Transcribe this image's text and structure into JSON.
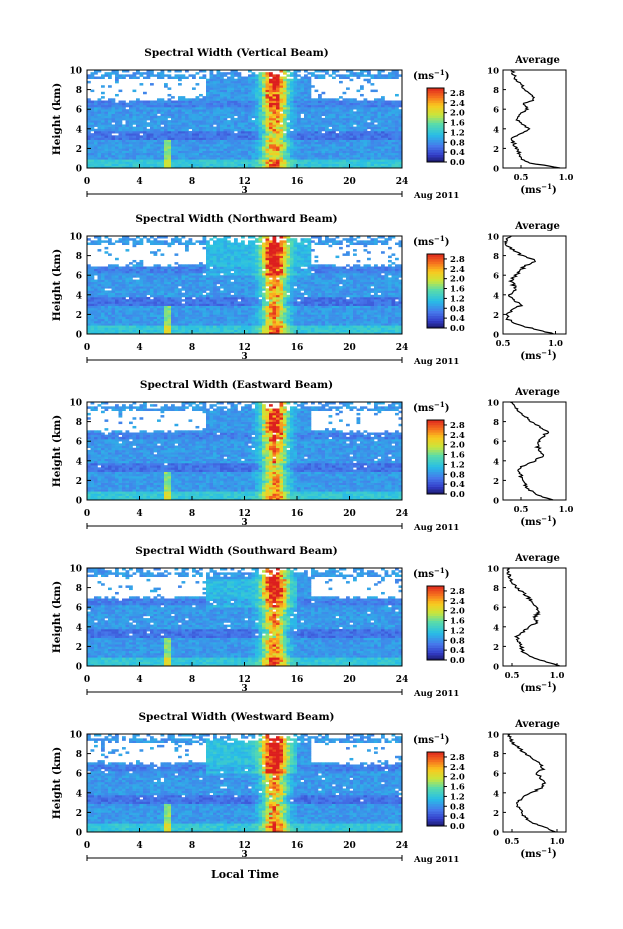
{
  "figure": {
    "xlabel": "Local Time",
    "date_label": "Aug 2011",
    "day_label": "3",
    "colorbar_unit": "(ms",
    "colorbar_unit_exp": "−1",
    "colorbar_unit_close": ")",
    "avg_unit": "(ms",
    "avg_unit_exp": "−1",
    "avg_unit_close": ")",
    "avg_title": "Average"
  },
  "chart_data": [
    {
      "type": "heatmap",
      "title": "Spectral Width (Vertical Beam)",
      "ylabel": "Height (km)",
      "xlim": [
        0,
        24
      ],
      "ylim": [
        0,
        10
      ],
      "xticks": [
        0,
        4,
        8,
        12,
        16,
        20,
        24
      ],
      "yticks": [
        0,
        2,
        4,
        6,
        8,
        10
      ],
      "colorbar": {
        "min": 0.0,
        "max": 3.0,
        "ticks": [
          "0.0",
          "0.4",
          "0.8",
          "1.2",
          "1.6",
          "2.0",
          "2.4",
          "2.8"
        ]
      },
      "average_profile": {
        "xlim": [
          0.3,
          1.0
        ],
        "xticks": [
          "0.5",
          "1.0"
        ],
        "height": [
          0,
          0.5,
          1,
          1.5,
          2,
          2.5,
          3,
          3.5,
          4,
          4.5,
          5,
          5.5,
          6,
          6.5,
          7,
          7.5,
          8,
          8.5,
          9,
          9.5,
          10
        ],
        "value": [
          0.95,
          0.6,
          0.5,
          0.48,
          0.45,
          0.42,
          0.4,
          0.5,
          0.58,
          0.52,
          0.45,
          0.5,
          0.58,
          0.52,
          0.65,
          0.6,
          0.55,
          0.5,
          0.45,
          0.42,
          0.4
        ]
      }
    },
    {
      "type": "heatmap",
      "title": "Spectral Width (Northward Beam)",
      "ylabel": "Height (km)",
      "xlim": [
        0,
        24
      ],
      "ylim": [
        0,
        10
      ],
      "xticks": [
        0,
        4,
        8,
        12,
        16,
        20,
        24
      ],
      "yticks": [
        0,
        2,
        4,
        6,
        8,
        10
      ],
      "colorbar": {
        "min": 0.0,
        "max": 3.0,
        "ticks": [
          "0.0",
          "0.4",
          "0.8",
          "1.2",
          "1.6",
          "2.0",
          "2.4",
          "2.8"
        ]
      },
      "average_profile": {
        "xlim": [
          0.5,
          1.1
        ],
        "xticks": [
          "0.5",
          "1.0"
        ],
        "height": [
          0,
          0.5,
          1,
          1.5,
          2,
          2.5,
          3,
          3.5,
          4,
          4.5,
          5,
          5.5,
          6,
          6.5,
          7,
          7.5,
          8,
          8.5,
          9,
          9.5,
          10
        ],
        "value": [
          1.0,
          0.8,
          0.62,
          0.55,
          0.55,
          0.6,
          0.68,
          0.6,
          0.56,
          0.62,
          0.6,
          0.58,
          0.62,
          0.66,
          0.72,
          0.82,
          0.68,
          0.6,
          0.55,
          0.52,
          0.58
        ]
      }
    },
    {
      "type": "heatmap",
      "title": "Spectral Width (Eastward Beam)",
      "ylabel": "Height (km)",
      "xlim": [
        0,
        24
      ],
      "ylim": [
        0,
        10
      ],
      "xticks": [
        0,
        4,
        8,
        12,
        16,
        20,
        24
      ],
      "yticks": [
        0,
        2,
        4,
        6,
        8,
        10
      ],
      "colorbar": {
        "min": 0.0,
        "max": 3.0,
        "ticks": [
          "0.0",
          "0.4",
          "0.8",
          "1.2",
          "1.6",
          "2.0",
          "2.4",
          "2.8"
        ]
      },
      "average_profile": {
        "xlim": [
          0.3,
          1.0
        ],
        "xticks": [
          "0.5",
          "1.0"
        ],
        "height": [
          0,
          0.5,
          1,
          1.5,
          2,
          2.5,
          3,
          3.5,
          4,
          4.5,
          5,
          5.5,
          6,
          6.5,
          7,
          7.5,
          8,
          8.5,
          9,
          9.5,
          10
        ],
        "value": [
          0.85,
          0.7,
          0.6,
          0.55,
          0.52,
          0.5,
          0.48,
          0.52,
          0.65,
          0.75,
          0.72,
          0.68,
          0.7,
          0.75,
          0.8,
          0.7,
          0.6,
          0.55,
          0.48,
          0.42,
          0.38
        ]
      }
    },
    {
      "type": "heatmap",
      "title": "Spectral Width (Southward Beam)",
      "ylabel": "Height (km)",
      "xlim": [
        0,
        24
      ],
      "ylim": [
        0,
        10
      ],
      "xticks": [
        0,
        4,
        8,
        12,
        16,
        20,
        24
      ],
      "yticks": [
        0,
        2,
        4,
        6,
        8,
        10
      ],
      "colorbar": {
        "min": 0.0,
        "max": 3.0,
        "ticks": [
          "0.0",
          "0.4",
          "0.8",
          "1.2",
          "1.6",
          "2.0",
          "2.4",
          "2.8"
        ]
      },
      "average_profile": {
        "xlim": [
          0.4,
          1.1
        ],
        "xticks": [
          "0.5",
          "1.0"
        ],
        "height": [
          0,
          0.5,
          1,
          1.5,
          2,
          2.5,
          3,
          3.5,
          4,
          4.5,
          5,
          5.5,
          6,
          6.5,
          7,
          7.5,
          8,
          8.5,
          9,
          9.5,
          10
        ],
        "value": [
          1.05,
          0.85,
          0.7,
          0.62,
          0.6,
          0.58,
          0.55,
          0.62,
          0.7,
          0.78,
          0.75,
          0.8,
          0.78,
          0.72,
          0.68,
          0.62,
          0.55,
          0.5,
          0.48,
          0.46,
          0.45
        ]
      }
    },
    {
      "type": "heatmap",
      "title": "Spectral Width (Westward Beam)",
      "ylabel": "Height (km)",
      "xlim": [
        0,
        24
      ],
      "ylim": [
        0,
        10
      ],
      "xticks": [
        0,
        4,
        8,
        12,
        16,
        20,
        24
      ],
      "yticks": [
        0,
        2,
        4,
        6,
        8,
        10
      ],
      "colorbar": {
        "min": 0.0,
        "max": 3.0,
        "ticks": [
          "0.0",
          "0.4",
          "0.8",
          "1.2",
          "1.6",
          "2.0",
          "2.4",
          "2.8"
        ]
      },
      "average_profile": {
        "xlim": [
          0.4,
          1.1
        ],
        "xticks": [
          "0.5",
          "1.0"
        ],
        "height": [
          0,
          0.5,
          1,
          1.5,
          2,
          2.5,
          3,
          3.5,
          4,
          4.5,
          5,
          5.5,
          6,
          6.5,
          7,
          7.5,
          8,
          8.5,
          9,
          9.5,
          10
        ],
        "value": [
          1.0,
          0.85,
          0.72,
          0.65,
          0.6,
          0.58,
          0.55,
          0.62,
          0.72,
          0.82,
          0.85,
          0.82,
          0.78,
          0.85,
          0.8,
          0.72,
          0.65,
          0.58,
          0.52,
          0.48,
          0.45
        ]
      }
    }
  ]
}
